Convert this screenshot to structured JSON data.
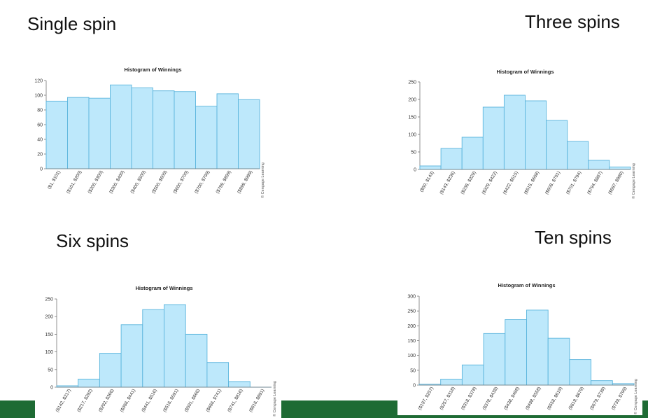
{
  "slide": {
    "headings": {
      "single": "Single spin",
      "three": "Three spins",
      "six": "Six spins",
      "ten": "Ten spins"
    },
    "copyright": "© Cengage Learning",
    "colors": {
      "bar_fill": "#bde8fb",
      "bar_stroke": "#5ab4dc",
      "footer_green": "#1e6b34"
    }
  },
  "chart_data": [
    {
      "type": "bar",
      "title": "Histogram of Winnings",
      "categories": [
        "($1, $101)",
        "($101, $200)",
        "($200, $300)",
        "($300, $400)",
        "($400, $500)",
        "($500, $600)",
        "($600, $700)",
        "($700, $799)",
        "($799, $899)",
        "($899, $999)"
      ],
      "values": [
        92,
        97,
        96,
        114,
        110,
        106,
        105,
        85,
        102,
        94
      ],
      "ylim": [
        0,
        120
      ],
      "yticks": [
        0,
        20,
        40,
        60,
        80,
        100,
        120
      ],
      "xlabel": "",
      "ylabel": ""
    },
    {
      "type": "bar",
      "title": "Histogram of Winnings",
      "categories": [
        "($50, $143)",
        "($143, $236)",
        "($236, $329)",
        "($329, $422)",
        "($422, $515)",
        "($515, $608)",
        "($608, $701)",
        "($701, $794)",
        "($794, $887)",
        "($887, $980)"
      ],
      "values": [
        10,
        60,
        92,
        178,
        212,
        196,
        140,
        80,
        26,
        7
      ],
      "ylim": [
        0,
        250
      ],
      "yticks": [
        0,
        50,
        100,
        150,
        200,
        250
      ],
      "xlabel": "",
      "ylabel": ""
    },
    {
      "type": "bar",
      "title": "Histogram of Winnings",
      "categories": [
        "($142, $217)",
        "($217, $292)",
        "($292, $366)",
        "($366, $441)",
        "($441, $516)",
        "($516, $591)",
        "($591, $666)",
        "($666, $741)",
        "($741, $816)",
        "($816, $891)"
      ],
      "values": [
        4,
        23,
        96,
        177,
        220,
        234,
        150,
        70,
        16,
        0
      ],
      "ylim": [
        0,
        250
      ],
      "yticks": [
        0,
        50,
        100,
        150,
        200,
        250
      ],
      "xlabel": "",
      "ylabel": ""
    },
    {
      "type": "bar",
      "title": "Histogram of Winnings",
      "categories": [
        "($197, $257)",
        "($257, $318)",
        "($318, $378)",
        "($378, $438)",
        "($438, $498)",
        "($498, $558)",
        "($558, $619)",
        "($619, $679)",
        "($679, $739)",
        "($739, $799)"
      ],
      "values": [
        3,
        20,
        68,
        174,
        221,
        253,
        158,
        86,
        15,
        5
      ],
      "ylim": [
        0,
        300
      ],
      "yticks": [
        0,
        50,
        100,
        150,
        200,
        250,
        300
      ],
      "xlabel": "",
      "ylabel": ""
    }
  ]
}
